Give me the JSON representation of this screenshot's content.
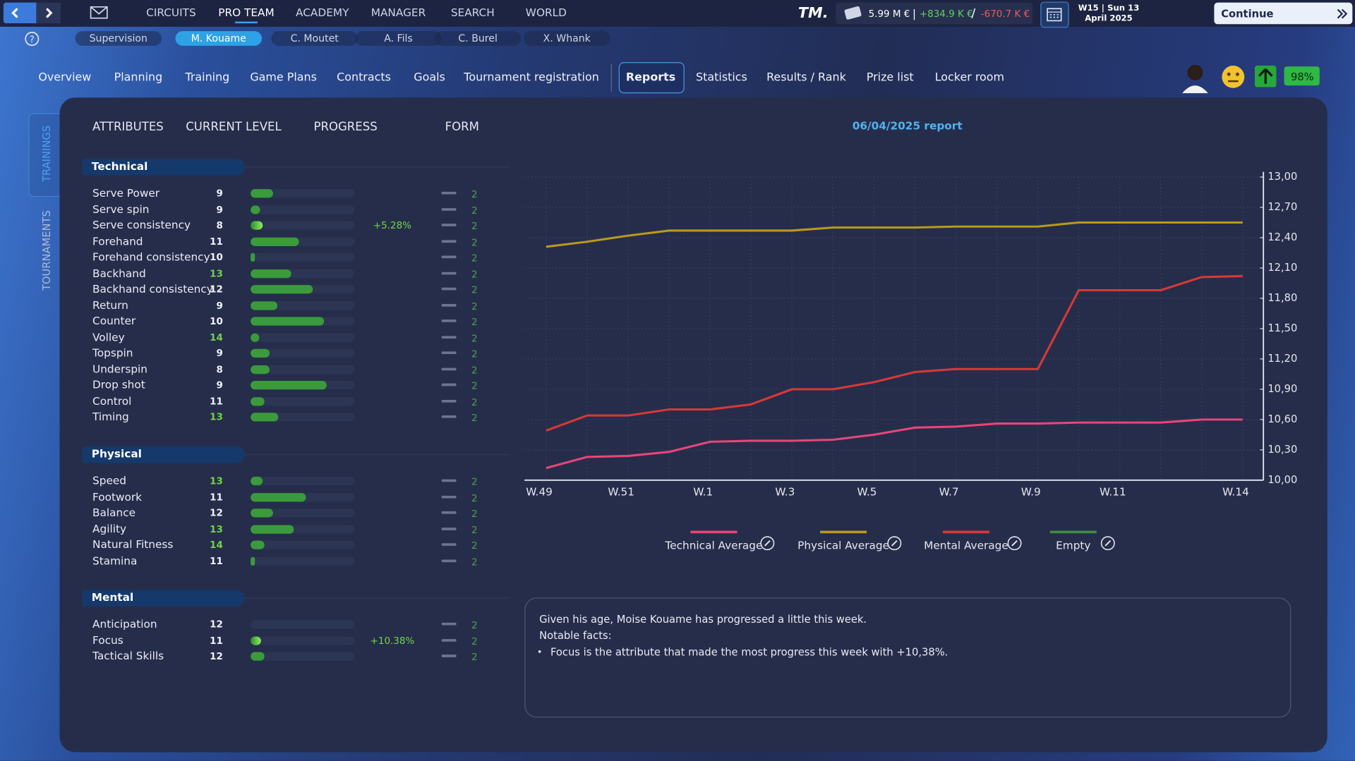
{
  "top_nav": {
    "menu": [
      "CIRCUITS",
      "PRO TEAM",
      "ACADEMY",
      "MANAGER",
      "SEARCH",
      "WORLD"
    ],
    "active": 1,
    "brand": "TM.",
    "balance": "5.99 M €",
    "separators": [
      "|",
      "/"
    ],
    "income": "+834.9 K €",
    "expense": "-670.7 K €",
    "date_week": "W15 | Sun 13",
    "date_month": "April 2025",
    "continue": "Continue"
  },
  "players": {
    "items": [
      "Supervision",
      "M. Kouame",
      "C. Moutet",
      "A. Fils",
      "C. Burel",
      "X. Whank"
    ],
    "active": 1
  },
  "tabs": {
    "items": [
      "Overview",
      "Planning",
      "Training",
      "Game Plans",
      "Contracts",
      "Goals",
      "Tournament registration",
      "Reports",
      "Statistics",
      "Results / Rank",
      "Prize list",
      "Locker room"
    ],
    "active": 7
  },
  "player_status": {
    "morale": "98%"
  },
  "side_tabs": {
    "items": [
      "TRAININGS",
      "TOURNAMENTS"
    ],
    "active": 0
  },
  "columns": [
    "ATTRIBUTES",
    "CURRENT LEVEL",
    "PROGRESS",
    "FORM"
  ],
  "sections": [
    {
      "title": "Technical",
      "attributes": [
        {
          "name": "Serve Power",
          "value": 9,
          "bar": 22,
          "form": 2
        },
        {
          "name": "Serve spin",
          "value": 9,
          "bar": 9,
          "form": 2
        },
        {
          "name": "Serve consistency",
          "value": 8,
          "bar": 12,
          "change": "+5.28%",
          "form": 2
        },
        {
          "name": "Forehand",
          "value": 11,
          "bar": 47,
          "form": 2
        },
        {
          "name": "Forehand consistency",
          "value": 10,
          "bar": 3,
          "form": 2
        },
        {
          "name": "Backhand",
          "value": 13,
          "bar": 39,
          "form": 2
        },
        {
          "name": "Backhand consistency",
          "value": 12,
          "bar": 60,
          "form": 2
        },
        {
          "name": "Return",
          "value": 9,
          "bar": 26,
          "form": 2
        },
        {
          "name": "Counter",
          "value": 10,
          "bar": 71,
          "form": 2
        },
        {
          "name": "Volley",
          "value": 14,
          "bar": 8,
          "form": 2
        },
        {
          "name": "Topspin",
          "value": 9,
          "bar": 18,
          "form": 2
        },
        {
          "name": "Underspin",
          "value": 8,
          "bar": 18,
          "form": 2
        },
        {
          "name": "Drop shot",
          "value": 9,
          "bar": 73,
          "form": 2
        },
        {
          "name": "Control",
          "value": 11,
          "bar": 13,
          "form": 2
        },
        {
          "name": "Timing",
          "value": 13,
          "bar": 27,
          "form": 2
        }
      ]
    },
    {
      "title": "Physical",
      "attributes": [
        {
          "name": "Speed",
          "value": 13,
          "bar": 12,
          "form": 2
        },
        {
          "name": "Footwork",
          "value": 11,
          "bar": 53,
          "form": 2
        },
        {
          "name": "Balance",
          "value": 12,
          "bar": 22,
          "form": 2
        },
        {
          "name": "Agility",
          "value": 13,
          "bar": 42,
          "form": 2
        },
        {
          "name": "Natural Fitness",
          "value": 14,
          "bar": 13,
          "form": 2
        },
        {
          "name": "Stamina",
          "value": 11,
          "bar": 4,
          "form": 2
        }
      ]
    },
    {
      "title": "Mental",
      "attributes": [
        {
          "name": "Anticipation",
          "value": 12,
          "bar": 0,
          "form": 2
        },
        {
          "name": "Focus",
          "value": 11,
          "bar": 10,
          "change": "+10.38%",
          "form": 2
        },
        {
          "name": "Tactical Skills",
          "value": 12,
          "bar": 13,
          "form": 2
        }
      ]
    }
  ],
  "chart_data": {
    "type": "line",
    "title": "06/04/2025 report",
    "categories": [
      "W.49",
      null,
      "W.51",
      null,
      "W.1",
      null,
      "W.3",
      null,
      "W.5",
      null,
      "W.7",
      null,
      "W.9",
      null,
      "W.11",
      null,
      null,
      "W.14"
    ],
    "series": [
      {
        "name": "Technical Average",
        "color": "#e8457a",
        "values": [
          10.12,
          10.23,
          10.24,
          10.28,
          10.38,
          10.39,
          10.39,
          10.4,
          10.45,
          10.52,
          10.53,
          10.56,
          10.56,
          10.57,
          10.57,
          10.57,
          10.6,
          10.6
        ]
      },
      {
        "name": "Physical Average",
        "color": "#b8991f",
        "values": [
          12.31,
          12.36,
          12.42,
          12.47,
          12.47,
          12.47,
          12.47,
          12.5,
          12.5,
          12.5,
          12.51,
          12.51,
          12.51,
          12.55,
          12.55,
          12.55,
          12.55,
          12.55
        ]
      },
      {
        "name": "Mental Average",
        "color": "#d93838",
        "values": [
          10.49,
          10.64,
          10.64,
          10.7,
          10.7,
          10.75,
          10.9,
          10.9,
          10.97,
          11.07,
          11.1,
          11.1,
          11.1,
          11.88,
          11.88,
          11.88,
          12.01,
          12.02
        ]
      },
      {
        "name": "Empty",
        "color": "#3f8c45",
        "values": [
          null,
          null,
          null,
          null,
          null,
          null,
          null,
          null,
          null,
          null,
          null,
          null,
          null,
          null,
          null,
          null,
          null,
          null
        ]
      }
    ],
    "ylim": [
      10,
      13
    ],
    "yticks": [
      {
        "value": 10,
        "label": "10,00"
      },
      {
        "value": 10.3,
        "label": "10,30"
      },
      {
        "value": 10.6,
        "label": "10,60"
      },
      {
        "value": 10.9,
        "label": "10,90"
      },
      {
        "value": 11.2,
        "label": "11,20"
      },
      {
        "value": 11.5,
        "label": "11,50"
      },
      {
        "value": 11.8,
        "label": "11,80"
      },
      {
        "value": 12.1,
        "label": "12,10"
      },
      {
        "value": 12.4,
        "label": "12,40"
      },
      {
        "value": 12.7,
        "label": "12,70"
      },
      {
        "value": 13,
        "label": "13,00"
      }
    ],
    "grid": true
  },
  "summary": {
    "lines": [
      "Given his age, Moise Kouame has progressed a little this week.",
      "Notable facts:"
    ],
    "bullets": [
      "Focus is the attribute that made the most progress this week with +10,38%."
    ]
  }
}
